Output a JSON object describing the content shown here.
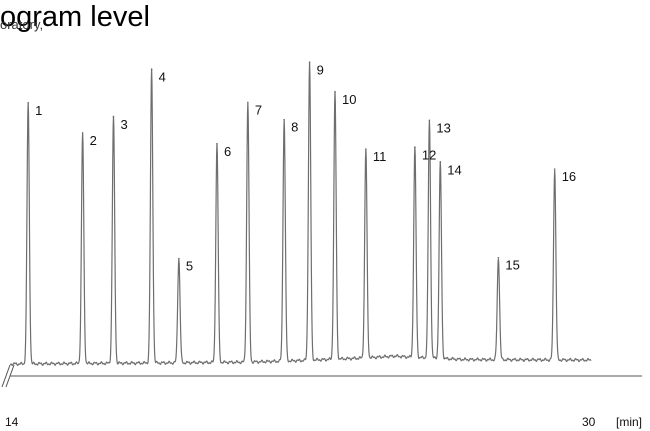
{
  "header": {
    "title_fragment": "ogram level",
    "overlap_fragment": "oratory,"
  },
  "chart_data": {
    "type": "line",
    "title": "",
    "xlabel": "",
    "ylabel": "",
    "x_unit": "[min]",
    "xlim": [
      14,
      30
    ],
    "x_tick_labels": [
      "14",
      "30"
    ],
    "grid": false,
    "axis_break": true,
    "line_color": "#6e6e6e",
    "baseline": [
      {
        "t": 14.0,
        "v": 0.0
      },
      {
        "t": 18.0,
        "v": 0.4
      },
      {
        "t": 20.5,
        "v": 0.7
      },
      {
        "t": 22.0,
        "v": 1.3
      },
      {
        "t": 23.8,
        "v": 2.3
      },
      {
        "t": 24.6,
        "v": 3.0
      },
      {
        "t": 25.0,
        "v": 2.6
      },
      {
        "t": 26.5,
        "v": 1.7
      },
      {
        "t": 28.0,
        "v": 1.6
      },
      {
        "t": 30.0,
        "v": 1.5
      }
    ],
    "peaks": [
      {
        "label": "1",
        "t": 14.5,
        "height": 98.5
      },
      {
        "label": "2",
        "t": 16.0,
        "height": 87.0
      },
      {
        "label": "3",
        "t": 16.85,
        "height": 93.0
      },
      {
        "label": "4",
        "t": 17.9,
        "height": 110.7
      },
      {
        "label": "5",
        "t": 18.65,
        "height": 39.3
      },
      {
        "label": "6",
        "t": 19.7,
        "height": 82.5
      },
      {
        "label": "7",
        "t": 20.55,
        "height": 98.0
      },
      {
        "label": "8",
        "t": 21.55,
        "height": 91.1
      },
      {
        "label": "9",
        "t": 22.25,
        "height": 112.4
      },
      {
        "label": "10",
        "t": 22.95,
        "height": 100.8
      },
      {
        "label": "11",
        "t": 23.8,
        "height": 78.8
      },
      {
        "label": "12",
        "t": 25.15,
        "height": 79.2
      },
      {
        "label": "13",
        "t": 25.55,
        "height": 89.7
      },
      {
        "label": "14",
        "t": 25.85,
        "height": 74.0
      },
      {
        "label": "15",
        "t": 27.45,
        "height": 38.5
      },
      {
        "label": "16",
        "t": 29.0,
        "height": 72.0
      }
    ]
  }
}
